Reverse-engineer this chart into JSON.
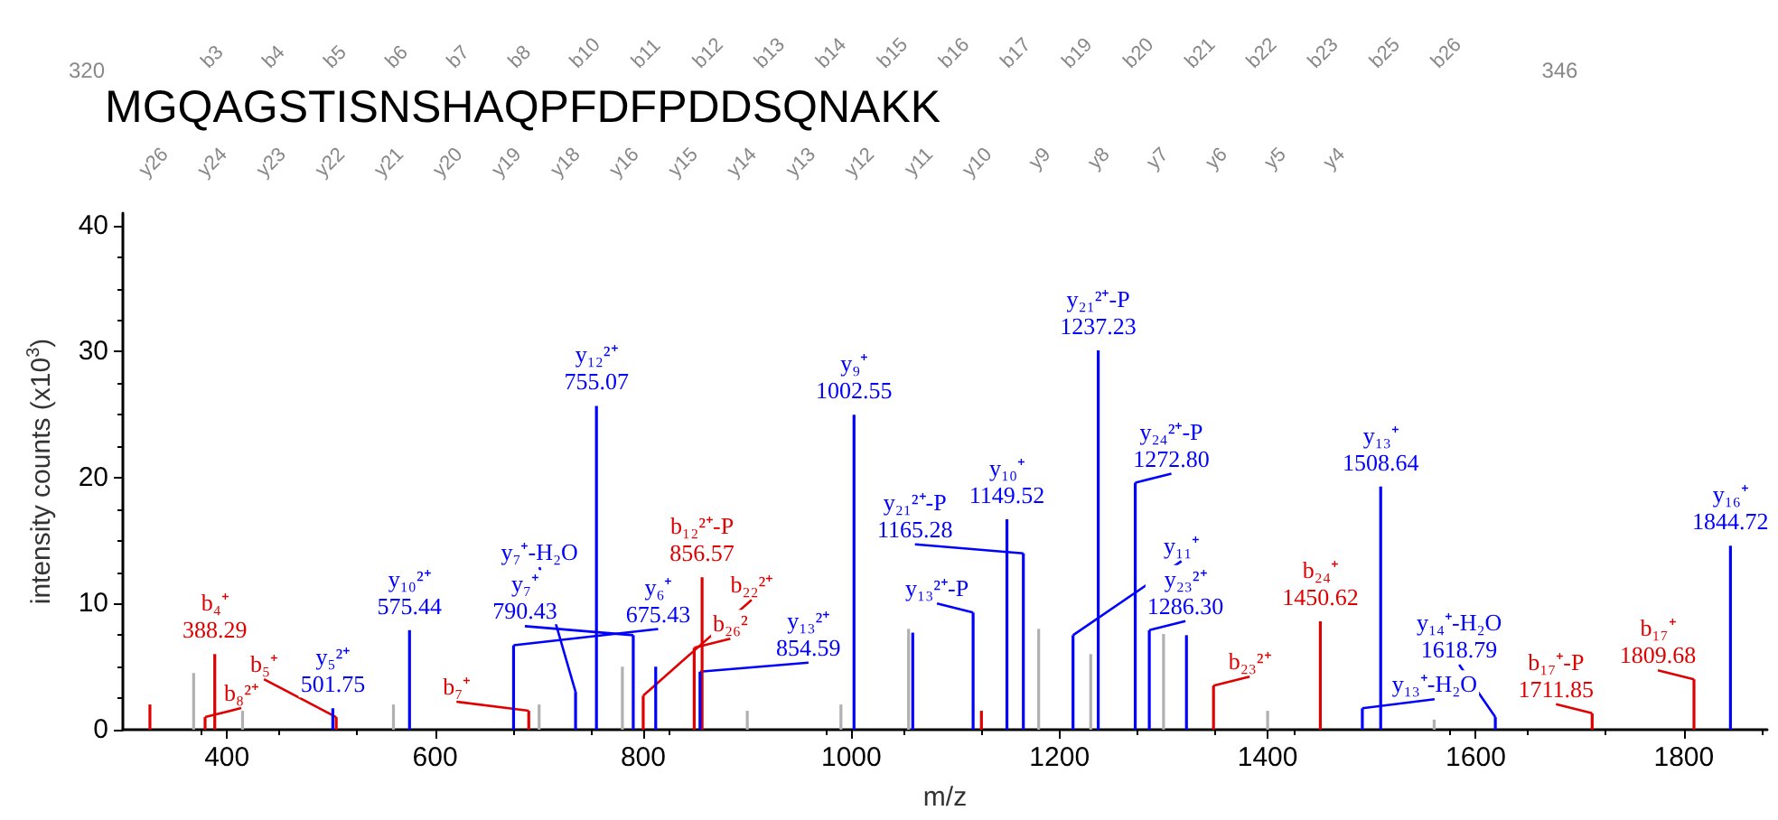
{
  "chart_data": {
    "type": "bar",
    "xlabel": "m/z",
    "ylabel": "intensity counts (x10$^{3}$)",
    "xlim": [
      300,
      1880
    ],
    "xticks": [
      400,
      600,
      800,
      1000,
      1200,
      1400,
      1600,
      1800
    ],
    "ylim": [
      0,
      41
    ],
    "yticks": [
      0,
      10,
      20,
      30,
      40
    ],
    "grid": false,
    "series": [
      {
        "color": "#0000ff",
        "x": [
          501.75,
          575.44,
          675.43,
          735,
          755.07,
          790.43,
          812,
          854.59,
          1002.55,
          1059,
          1117,
          1149.52,
          1165.28,
          1213,
          1237.23,
          1272.8,
          1286.3,
          1322,
          1491,
          1508.64,
          1618.79,
          1844.72
        ],
        "values": [
          1.7,
          7.9,
          6.7,
          3,
          25.7,
          7.5,
          5,
          4.6,
          25,
          7.7,
          9.3,
          16.7,
          14,
          7.5,
          30.1,
          19.6,
          7.9,
          7.5,
          1.7,
          19.3,
          1,
          14.6
        ]
      },
      {
        "color": "#e00000",
        "x": [
          326,
          379,
          388.29,
          505,
          690,
          800,
          849,
          856.57,
          1125,
          1348,
          1450.62,
          1711.85,
          1809.68
        ],
        "values": [
          2,
          1,
          6,
          1,
          1.5,
          2.7,
          6.5,
          12.1,
          1.5,
          3.5,
          8.6,
          1.3,
          4
        ]
      },
      {
        "color": "#b0b0b0",
        "x": [
          368,
          415,
          560,
          700,
          780,
          900,
          990,
          1055,
          1180,
          1230,
          1300,
          1400,
          1560
        ],
        "values": [
          4.5,
          1.5,
          2,
          2,
          5,
          1.5,
          2,
          8,
          8,
          6,
          7.6,
          1.5,
          0.8
        ]
      }
    ],
    "annotations": [
      "320",
      "MGQAGSTISNSHAQPFDFPDDSQNAKK",
      "346",
      "b3",
      "b4",
      "b5",
      "b6",
      "b7",
      "b8",
      "b10",
      "b11",
      "b12",
      "b13",
      "b14",
      "b15",
      "b16",
      "b17",
      "b19",
      "b20",
      "b21",
      "b22",
      "b23",
      "b25",
      "b26",
      "y26",
      "y24",
      "y23",
      "y22",
      "y21",
      "y20",
      "y19",
      "y18",
      "y16",
      "y15",
      "y14",
      "y13",
      "y12",
      "y11",
      "y10",
      "y9",
      "y8",
      "y7",
      "y6",
      "y5",
      "y4",
      {
        "text": "b₈²⁺",
        "x": 379,
        "y": 1
      },
      {
        "text": "b₄⁺\n388.29",
        "x": 388.29,
        "y": 6
      },
      {
        "text": "y₅²⁺\n501.75",
        "x": 501.75,
        "y": 1.7
      },
      {
        "text": "b₅⁺",
        "x": 505,
        "y": 1
      },
      {
        "text": "y₁₀²⁺\n575.44",
        "x": 575.44,
        "y": 7.9
      },
      {
        "text": "y₆⁺\n675.43",
        "x": 675.43,
        "y": 6.7
      },
      {
        "text": "b₇⁺",
        "x": 690,
        "y": 1.5
      },
      {
        "text": "y₇⁺-H₂O",
        "x": 735,
        "y": 3
      },
      {
        "text": "y₁₂²⁺\n755.07",
        "x": 755.07,
        "y": 25.7
      },
      {
        "text": "y₇⁺\n790.43",
        "x": 790.43,
        "y": 7.5
      },
      {
        "text": "b₂₂²⁺",
        "x": 800,
        "y": 2.7
      },
      {
        "text": "b₂₆²",
        "x": 849,
        "y": 6.5
      },
      {
        "text": "y₁₃²⁺\n854.59",
        "x": 854.59,
        "y": 4.6
      },
      {
        "text": "b₁₂²⁺-P\n856.57",
        "x": 856.57,
        "y": 12.1
      },
      {
        "text": "y₉⁺\n1002.55",
        "x": 1002.55,
        "y": 25
      },
      {
        "text": "y₁₃²⁺-P",
        "x": 1117,
        "y": 9.3
      },
      {
        "text": "y₁₀⁺\n1149.52",
        "x": 1149.52,
        "y": 16.7
      },
      {
        "text": "y₂₁²⁺-P\n1165.28",
        "x": 1165.28,
        "y": 14
      },
      {
        "text": "y₁₁⁺",
        "x": 1213,
        "y": 7.5
      },
      {
        "text": "y₂₁²⁺-P\n1237.23",
        "x": 1237.23,
        "y": 30.1
      },
      {
        "text": "y₂₄²⁺-P\n1272.80",
        "x": 1272.8,
        "y": 19.6
      },
      {
        "text": "y₂₃²⁺\n1286.30",
        "x": 1286.3,
        "y": 7.9
      },
      {
        "text": "b₂₃²⁺",
        "x": 1348,
        "y": 3.5
      },
      {
        "text": "b₂₄⁺\n1450.62",
        "x": 1450.62,
        "y": 8.6
      },
      {
        "text": "y₁₃⁺-H₂O",
        "x": 1491,
        "y": 1.7
      },
      {
        "text": "y₁₃⁺\n1508.64",
        "x": 1508.64,
        "y": 19.3
      },
      {
        "text": "y₁₄⁺-H₂O\n1618.79",
        "x": 1618.79,
        "y": 1
      },
      {
        "text": "b₁₇⁺-P\n1711.85",
        "x": 1711.85,
        "y": 1.3
      },
      {
        "text": "b₁₇⁺\n1809.68",
        "x": 1809.68,
        "y": 4
      },
      {
        "text": "y₁₆⁺\n1844.72",
        "x": 1844.72,
        "y": 14.6
      }
    ]
  }
}
